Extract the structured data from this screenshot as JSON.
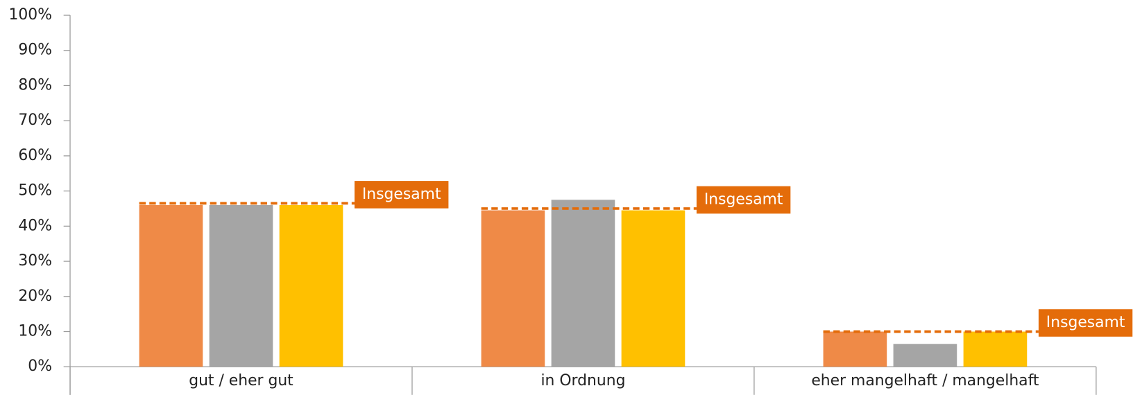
{
  "chart_data": {
    "type": "bar",
    "categories": [
      "gut / eher gut",
      "in Ordnung",
      "eher mangelhaft / mangelhaft"
    ],
    "series": [
      {
        "color": "#ef8a47",
        "values": [
          46,
          44.5,
          10
        ]
      },
      {
        "color": "#a5a5a5",
        "values": [
          46,
          47.5,
          6.5
        ]
      },
      {
        "color": "#ffc000",
        "values": [
          46,
          44.5,
          10
        ]
      }
    ],
    "overall": {
      "name": "Insgesamt",
      "color": "#e46c0a",
      "values": [
        46.5,
        45,
        10
      ]
    },
    "ylim": [
      0,
      100
    ],
    "yticks": [
      {
        "value": 0,
        "label": "0%"
      },
      {
        "value": 10,
        "label": "10%"
      },
      {
        "value": 20,
        "label": "20%"
      },
      {
        "value": 30,
        "label": "30%"
      },
      {
        "value": 40,
        "label": "40%"
      },
      {
        "value": 50,
        "label": "50%"
      },
      {
        "value": 60,
        "label": "60%"
      },
      {
        "value": 70,
        "label": "70%"
      },
      {
        "value": 80,
        "label": "80%"
      },
      {
        "value": 90,
        "label": "90%"
      },
      {
        "value": 100,
        "label": "100%"
      }
    ]
  }
}
